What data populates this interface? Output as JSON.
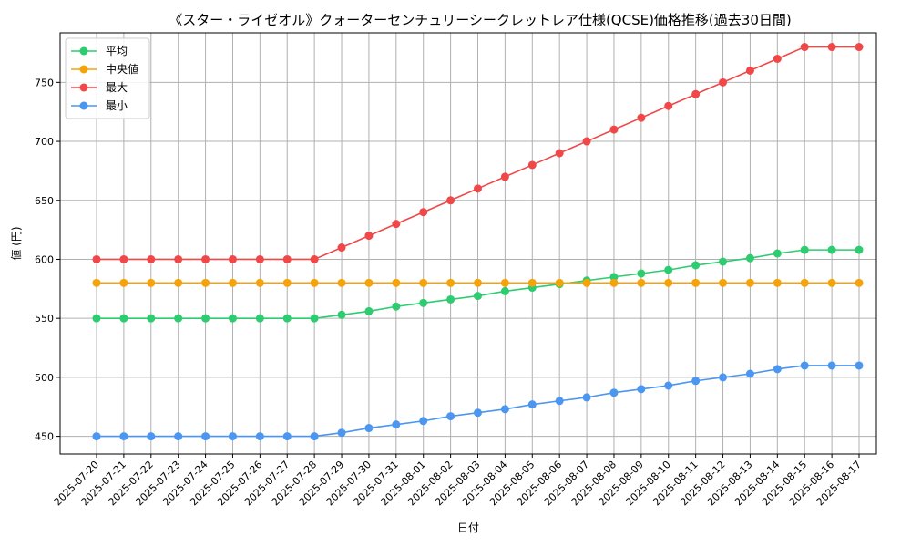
{
  "chart_data": {
    "type": "line",
    "title": "《スター・ライゼオル》クォーターセンチュリーシークレットレア仕様(QCSE)価格推移(過去30日間)",
    "xlabel": "日付",
    "ylabel": "値 (円)",
    "ylim": [
      435,
      792
    ],
    "yticks": [
      450,
      500,
      550,
      600,
      650,
      700,
      750
    ],
    "grid": true,
    "legend_position": "top-left",
    "categories": [
      "2025-07-20",
      "2025-07-21",
      "2025-07-22",
      "2025-07-23",
      "2025-07-24",
      "2025-07-25",
      "2025-07-26",
      "2025-07-27",
      "2025-07-28",
      "2025-07-29",
      "2025-07-30",
      "2025-07-31",
      "2025-08-01",
      "2025-08-02",
      "2025-08-03",
      "2025-08-04",
      "2025-08-05",
      "2025-08-06",
      "2025-08-07",
      "2025-08-08",
      "2025-08-09",
      "2025-08-10",
      "2025-08-11",
      "2025-08-12",
      "2025-08-13",
      "2025-08-14",
      "2025-08-15",
      "2025-08-16",
      "2025-08-17"
    ],
    "series": [
      {
        "name": "平均",
        "color": "#2ecc71",
        "values": [
          550,
          550,
          550,
          550,
          550,
          550,
          550,
          550,
          550,
          553,
          556,
          560,
          563,
          566,
          569,
          573,
          576,
          579,
          582,
          585,
          588,
          591,
          595,
          598,
          601,
          605,
          608,
          608,
          608
        ]
      },
      {
        "name": "中央値",
        "color": "#f5a30a",
        "values": [
          580,
          580,
          580,
          580,
          580,
          580,
          580,
          580,
          580,
          580,
          580,
          580,
          580,
          580,
          580,
          580,
          580,
          580,
          580,
          580,
          580,
          580,
          580,
          580,
          580,
          580,
          580,
          580,
          580
        ]
      },
      {
        "name": "最大",
        "color": "#f04848",
        "values": [
          600,
          600,
          600,
          600,
          600,
          600,
          600,
          600,
          600,
          610,
          620,
          630,
          640,
          650,
          660,
          670,
          680,
          690,
          700,
          710,
          720,
          730,
          740,
          750,
          760,
          770,
          780,
          780,
          780
        ]
      },
      {
        "name": "最小",
        "color": "#4b96f0",
        "values": [
          450,
          450,
          450,
          450,
          450,
          450,
          450,
          450,
          450,
          453,
          457,
          460,
          463,
          467,
          470,
          473,
          477,
          480,
          483,
          487,
          490,
          493,
          497,
          500,
          503,
          507,
          510,
          510,
          510
        ]
      }
    ]
  }
}
